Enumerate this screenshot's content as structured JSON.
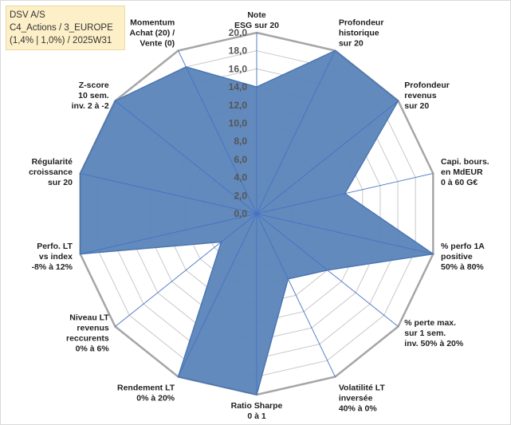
{
  "header": {
    "line1": "DSV A/S",
    "line2": "C4_Actions / 3_EUROPE",
    "line3": "(1,4% | 1,0%) / 2025W31"
  },
  "colors": {
    "fill": "#5b84b9",
    "stroke": "#4a76b0",
    "spoke": "#4472c4",
    "grid": "#c8c8c8",
    "outer_ring": "#a6a6a6",
    "title_bg": "#fdf0c8"
  },
  "chart_data": {
    "type": "radar",
    "r_min": 0,
    "r_max": 20,
    "r_step": 2,
    "tick_labels": [
      "0,0",
      "2,0",
      "4,0",
      "6,0",
      "8,0",
      "10,0",
      "12,0",
      "14,0",
      "16,0",
      "18,0",
      "20,0"
    ],
    "axes": [
      {
        "label": [
          "Note",
          "ESG sur 20"
        ],
        "value": 14
      },
      {
        "label": [
          "Profondeur",
          "historique",
          "sur 20"
        ],
        "value": 20
      },
      {
        "label": [
          "Profondeur",
          "revenus",
          "sur 20"
        ],
        "value": 20
      },
      {
        "label": [
          "Capi. bours.",
          "en MdEUR",
          "0 à 60 G€"
        ],
        "value": 10
      },
      {
        "label": [
          "% perfo 1A",
          "positive",
          "50% à 80%"
        ],
        "value": 20
      },
      {
        "label": [
          "% perte max.",
          "sur 1 sem.",
          "inv. 50% à 20%"
        ],
        "value": 10
      },
      {
        "label": [
          "Volatilité LT",
          "inversée",
          "40% à 0%"
        ],
        "value": 8
      },
      {
        "label": [
          "Ratio Sharpe",
          "0 à 1"
        ],
        "value": 20
      },
      {
        "label": [
          "Rendement LT",
          "0% à 20%"
        ],
        "value": 20
      },
      {
        "label": [
          "Niveau LT",
          "revenus",
          "reccurents",
          "0% à 6%"
        ],
        "value": 5
      },
      {
        "label": [
          "Perfo. LT",
          "vs index",
          "-8% à 12%"
        ],
        "value": 20
      },
      {
        "label": [
          "Régularité",
          "croissance",
          "sur 20"
        ],
        "value": 20
      },
      {
        "label": [
          "Z-score",
          "10 sem.",
          "inv. 2 à -2"
        ],
        "value": 20
      },
      {
        "label": [
          "Momentum",
          "Achat (20) /",
          "Vente (0)"
        ],
        "value": 18
      }
    ]
  }
}
